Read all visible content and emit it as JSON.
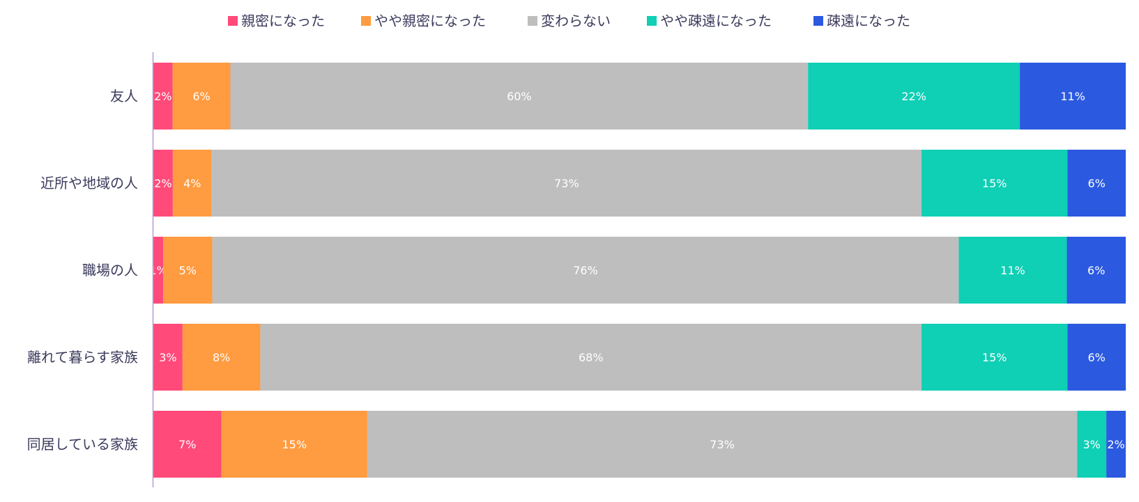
{
  "chart_data": {
    "type": "bar",
    "orientation": "horizontal",
    "stacked": true,
    "percent": true,
    "title": "",
    "xlabel": "",
    "ylabel": "",
    "xlim": [
      0,
      100
    ],
    "grid": false,
    "legend_position": "top",
    "categories": [
      "友人",
      "近所や地域の人",
      "職場の人",
      "離れて暮らす家族",
      "同居している家族"
    ],
    "series": [
      {
        "name": "親密になった",
        "color": "#FF4A7A",
        "values": [
          2,
          2,
          1,
          3,
          7
        ],
        "labels": [
          "2%",
          "2%",
          "1%",
          "3%",
          "7%"
        ]
      },
      {
        "name": "やや親密になった",
        "color": "#FF9B40",
        "values": [
          6,
          4,
          5,
          8,
          15
        ],
        "labels": [
          "6%",
          "4%",
          "5%",
          "8%",
          "15%"
        ]
      },
      {
        "name": "変わらない",
        "color": "#BEBEBE",
        "values": [
          60,
          73,
          76,
          68,
          73
        ],
        "labels": [
          "60%",
          "73%",
          "76%",
          "68%",
          "73%"
        ]
      },
      {
        "name": "やや疎遠になった",
        "color": "#0FCFB5",
        "values": [
          22,
          15,
          11,
          15,
          3
        ],
        "labels": [
          "22%",
          "15%",
          "11%",
          "15%",
          "3%"
        ]
      },
      {
        "name": "疎遠になった",
        "color": "#2B59E0",
        "values": [
          11,
          6,
          6,
          6,
          2
        ],
        "labels": [
          "11%",
          "6%",
          "6%",
          "6%",
          "2%"
        ]
      }
    ]
  }
}
